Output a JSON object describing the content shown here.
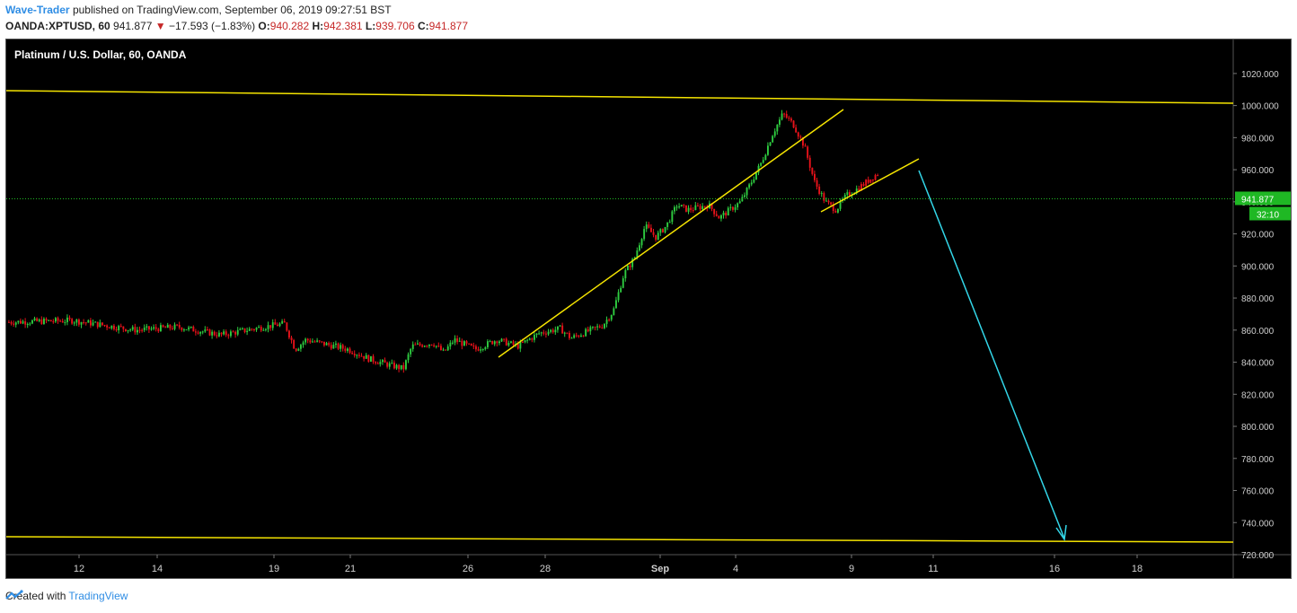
{
  "header": {
    "author": "Wave-Trader",
    "published_text": "published on TradingView.com, September 06, 2019 09:27:51 BST",
    "symbol_line_prefix": "OANDA:XPTUSD, 60",
    "last": "941.877",
    "change_arrow": "▼",
    "change": "−17.593 (−1.83%)",
    "o_label": "O:",
    "o_value": "940.282",
    "h_label": "H:",
    "h_value": "942.381",
    "l_label": "L:",
    "l_value": "939.706",
    "c_label": "C:",
    "c_value": "941.877"
  },
  "footer": {
    "created_with": "Created with",
    "brand": "TradingView"
  },
  "colors": {
    "background": "#000000",
    "up": "#2ecc40",
    "down": "#e8121a",
    "trendline": "#f5e400",
    "projection": "#33d6e8",
    "price_line": "#1fb824",
    "price_label_bg": "#1fb824",
    "axis_text": "#cfcfcf"
  },
  "chart_data": {
    "type": "candlestick",
    "title": "Platinum / U.S. Dollar, 60, OANDA",
    "ylim": [
      720,
      1030
    ],
    "y_ticks": [
      "1020.000",
      "1000.000",
      "980.000",
      "960.000",
      "940.000",
      "920.000",
      "900.000",
      "880.000",
      "860.000",
      "840.000",
      "820.000",
      "800.000",
      "780.000",
      "760.000",
      "740.000",
      "720.000"
    ],
    "x_ticks": [
      "12",
      "14",
      "19",
      "21",
      "26",
      "28",
      "Sep",
      "4",
      "9",
      "11",
      "16",
      "18"
    ],
    "last_price_label": "941.877",
    "countdown_label": "32:10",
    "last_price": 941.877,
    "price_path": [
      {
        "t": 0,
        "p": 865
      },
      {
        "t": 3,
        "p": 866
      },
      {
        "t": 6,
        "p": 860
      },
      {
        "t": 8,
        "p": 862
      },
      {
        "t": 10,
        "p": 857
      },
      {
        "t": 12,
        "p": 862
      },
      {
        "t": 13,
        "p": 864
      },
      {
        "t": 13.5,
        "p": 848
      },
      {
        "t": 14,
        "p": 854
      },
      {
        "t": 16,
        "p": 848
      },
      {
        "t": 17,
        "p": 842
      },
      {
        "t": 18,
        "p": 838
      },
      {
        "t": 18.6,
        "p": 836
      },
      {
        "t": 19,
        "p": 850
      },
      {
        "t": 20,
        "p": 852
      },
      {
        "t": 20.5,
        "p": 846
      },
      {
        "t": 21,
        "p": 854
      },
      {
        "t": 22,
        "p": 848
      },
      {
        "t": 23,
        "p": 854
      },
      {
        "t": 24,
        "p": 850
      },
      {
        "t": 25,
        "p": 858
      },
      {
        "t": 26,
        "p": 861
      },
      {
        "t": 26.5,
        "p": 855
      },
      {
        "t": 28,
        "p": 863
      },
      {
        "t": 28.5,
        "p": 872
      },
      {
        "t": 29,
        "p": 895
      },
      {
        "t": 29.5,
        "p": 905
      },
      {
        "t": 30,
        "p": 925
      },
      {
        "t": 30.5,
        "p": 918
      },
      {
        "t": 31,
        "p": 925
      },
      {
        "t": 31.5,
        "p": 938
      },
      {
        "t": 32,
        "p": 935
      },
      {
        "t": 33,
        "p": 938
      },
      {
        "t": 33.5,
        "p": 930
      },
      {
        "t": 34.5,
        "p": 940
      },
      {
        "t": 35,
        "p": 952
      },
      {
        "t": 35.5,
        "p": 965
      },
      {
        "t": 36,
        "p": 982
      },
      {
        "t": 36.5,
        "p": 995
      },
      {
        "t": 37,
        "p": 988
      },
      {
        "t": 37.5,
        "p": 975
      },
      {
        "t": 38,
        "p": 952
      },
      {
        "t": 38.5,
        "p": 940
      },
      {
        "t": 39,
        "p": 935
      },
      {
        "t": 39.5,
        "p": 944
      },
      {
        "t": 40,
        "p": 948
      },
      {
        "t": 40.5,
        "p": 953
      },
      {
        "t": 41,
        "p": 958
      }
    ],
    "time_to_x_note": "Candlestick body series estimated from image; trendlines drawn as annotations."
  }
}
